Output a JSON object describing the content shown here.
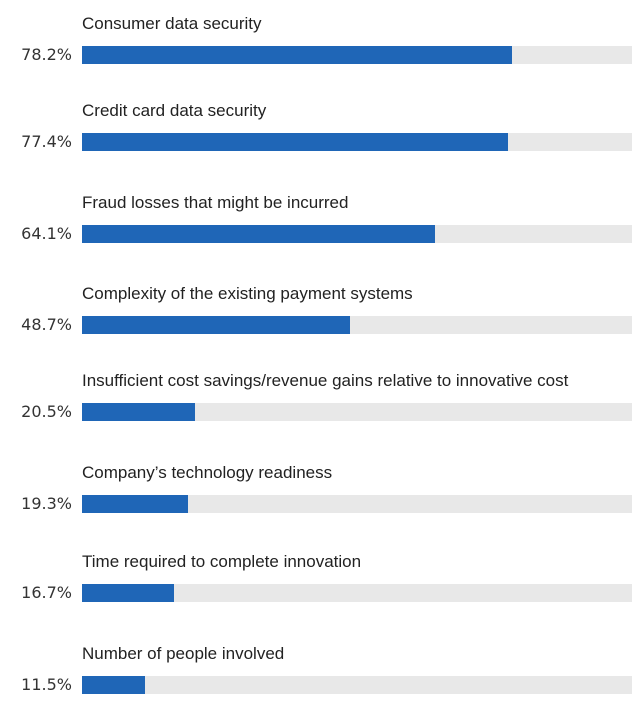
{
  "chart_data": {
    "type": "bar",
    "orientation": "horizontal",
    "categories": [
      "Consumer data security",
      "Credit card data security",
      "Fraud losses that might be incurred",
      "Complexity of the existing payment systems",
      "Insufficient cost savings/revenue gains relative to innovative cost",
      "Company’s technology readiness",
      "Time required to complete innovation",
      "Number of people involved"
    ],
    "values": [
      78.2,
      77.4,
      64.1,
      48.7,
      20.5,
      19.3,
      16.7,
      11.5
    ],
    "value_labels": [
      "78.2%",
      "77.4%",
      "64.1%",
      "48.7%",
      "20.5%",
      "19.3%",
      "16.7%",
      "11.5%"
    ],
    "xlim": [
      0,
      100
    ],
    "bar_color": "#1f66b7",
    "track_color": "#e8e8e8"
  }
}
